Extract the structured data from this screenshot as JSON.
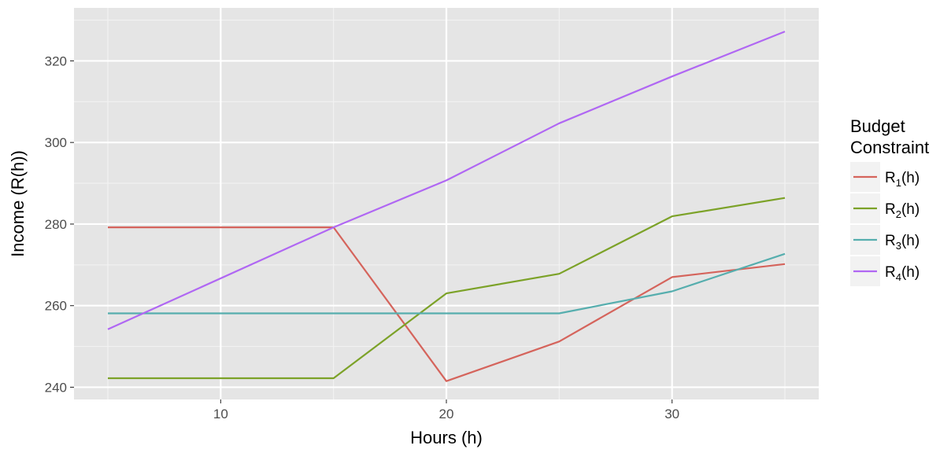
{
  "chart_data": {
    "type": "line",
    "xlabel": "Hours (h)",
    "ylabel": "Income (R(h))",
    "xlim": [
      3.5,
      36.5
    ],
    "ylim": [
      237,
      333
    ],
    "x_ticks": [
      10,
      20,
      30
    ],
    "y_ticks": [
      240,
      260,
      280,
      300,
      320
    ],
    "grid": true,
    "legend": {
      "title_lines": [
        "Budget",
        "Constraint"
      ],
      "position": "right"
    },
    "x": [
      5,
      15,
      20,
      25,
      30,
      35
    ],
    "series": [
      {
        "name": "R1(h)",
        "label_main": "R",
        "label_sub": "1",
        "label_suffix": "(h)",
        "color": "#d5645c",
        "values": [
          279.2,
          279.2,
          241.5,
          251.2,
          267.0,
          270.2
        ]
      },
      {
        "name": "R2(h)",
        "label_main": "R",
        "label_sub": "2",
        "label_suffix": "(h)",
        "color": "#7ca228",
        "values": [
          242.2,
          242.2,
          263.0,
          267.8,
          281.9,
          286.4
        ]
      },
      {
        "name": "R3(h)",
        "label_main": "R",
        "label_sub": "3",
        "label_suffix": "(h)",
        "color": "#56aeae",
        "values": [
          258.1,
          258.1,
          258.1,
          258.1,
          263.5,
          272.7
        ]
      },
      {
        "name": "R4(h)",
        "label_main": "R",
        "label_sub": "4",
        "label_suffix": "(h)",
        "color": "#b067f3",
        "values": [
          254.2,
          279.2,
          290.7,
          304.7,
          316.2,
          327.2
        ]
      }
    ]
  }
}
